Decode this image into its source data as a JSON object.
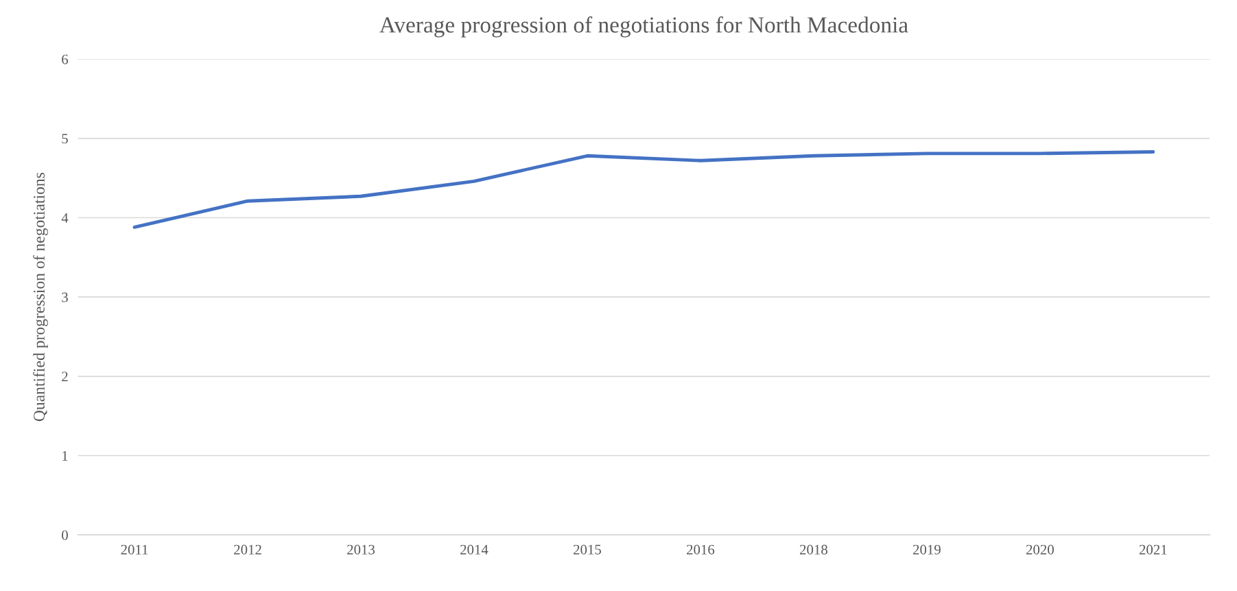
{
  "chart_data": {
    "type": "line",
    "title": "Average progression of negotiations for North Macedonia",
    "ylabel": "Quantified progression of negotiations",
    "categories": [
      "2011",
      "2012",
      "2013",
      "2014",
      "2015",
      "2016",
      "2018",
      "2019",
      "2020",
      "2021"
    ],
    "series": [
      {
        "color": "#4472c4",
        "values": [
          3.88,
          4.21,
          4.27,
          4.46,
          4.78,
          4.72,
          4.78,
          4.81,
          4.81,
          4.83
        ]
      }
    ],
    "ylim": [
      0,
      6
    ],
    "yticks": [
      0,
      1,
      2,
      3,
      4,
      5,
      6
    ],
    "grid": "y",
    "legend": false,
    "marker": "none",
    "line_style": "solid"
  }
}
